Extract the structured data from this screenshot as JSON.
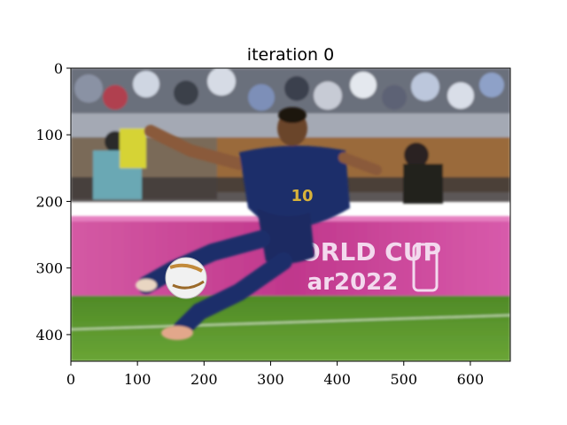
{
  "figure": {
    "title": "iteration 0",
    "image": {
      "description_colors": {
        "crowd_dark": "#3a3f4a",
        "crowd_light": "#c9ced8",
        "board_brown": "#9a6a3a",
        "banner_magenta": "#c63a8e",
        "banner_pink": "#e66ab0",
        "grass_green": "#5f9a2f",
        "jersey_navy": "#1f2f6b",
        "skin": "#8a5a3a",
        "ball_white": "#f1f1f1"
      },
      "banner_text_line1": "ORLD CUP",
      "banner_text_line2": "ar2022",
      "jersey_number": "10"
    },
    "axes": {
      "x_ticks": [
        "0",
        "100",
        "200",
        "300",
        "400",
        "500",
        "600"
      ],
      "y_ticks": [
        "0",
        "100",
        "200",
        "300",
        "400"
      ],
      "x_range": [
        0,
        660
      ],
      "y_range": [
        0,
        440
      ]
    }
  }
}
